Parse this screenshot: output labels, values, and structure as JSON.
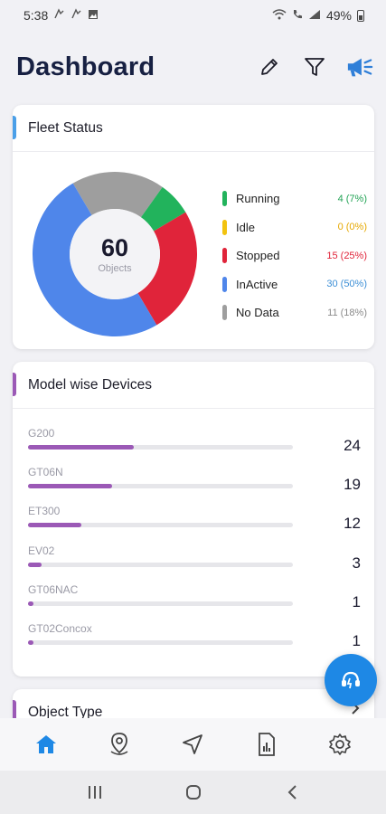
{
  "status_bar": {
    "time": "5:38",
    "battery": "49%"
  },
  "header": {
    "title": "Dashboard",
    "actions": [
      {
        "icon": "pencil-icon"
      },
      {
        "icon": "filter-icon"
      },
      {
        "icon": "megaphone-icon"
      }
    ]
  },
  "fleet_status": {
    "title": "Fleet Status",
    "total_value": "60",
    "total_label": "Objects",
    "items": [
      {
        "label": "Running",
        "count": "4 (7%)",
        "color": "#22b35c",
        "count_color": "#22a355"
      },
      {
        "label": "Idle",
        "count": "0 (0%)",
        "color": "#f2c30f",
        "count_color": "#e6a800"
      },
      {
        "label": "Stopped",
        "count": "15 (25%)",
        "color": "#e0243a",
        "count_color": "#e0243a"
      },
      {
        "label": "InActive",
        "count": "30 (50%)",
        "color": "#4f86ea",
        "count_color": "#3d8fd6"
      },
      {
        "label": "No Data",
        "count": "11 (18%)",
        "color": "#9e9e9e",
        "count_color": "#8a8a8a"
      }
    ]
  },
  "chart_data": {
    "type": "pie",
    "title": "Fleet Status",
    "categories": [
      "Running",
      "Idle",
      "Stopped",
      "InActive",
      "No Data"
    ],
    "values": [
      4,
      0,
      15,
      30,
      11
    ],
    "colors": [
      "#22b35c",
      "#f2c30f",
      "#e0243a",
      "#4f86ea",
      "#9e9e9e"
    ]
  },
  "model_devices": {
    "title": "Model wise Devices",
    "accent": "#9b59b6",
    "max": 60,
    "items": [
      {
        "name": "G200",
        "count": "24",
        "value": 24
      },
      {
        "name": "GT06N",
        "count": "19",
        "value": 19
      },
      {
        "name": "ET300",
        "count": "12",
        "value": 12
      },
      {
        "name": "EV02",
        "count": "3",
        "value": 3
      },
      {
        "name": "GT06NAC",
        "count": "1",
        "value": 1
      },
      {
        "name": "GT02Concox",
        "count": "1",
        "value": 1
      }
    ]
  },
  "object_type": {
    "title": "Object Type"
  },
  "bottom_nav": [
    {
      "icon": "home-icon",
      "active": true
    },
    {
      "icon": "location-pin-icon",
      "active": false
    },
    {
      "icon": "navigation-arrow-icon",
      "active": false
    },
    {
      "icon": "report-icon",
      "active": false
    },
    {
      "icon": "settings-gear-icon",
      "active": false
    }
  ],
  "colors": {
    "accent_blue": "#1e88e5",
    "fleet_accent": "#4a9fe8",
    "model_accent": "#9b59b6"
  }
}
